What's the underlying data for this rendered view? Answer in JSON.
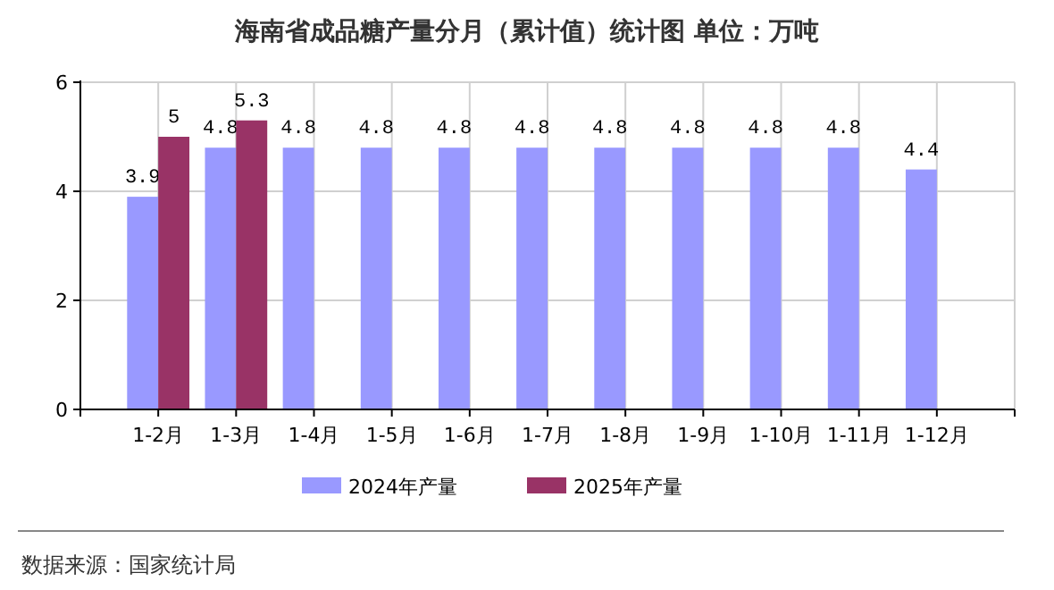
{
  "chart_data": {
    "type": "bar",
    "title": "海南省成品糖产量分月（累计值）统计图 单位：万吨",
    "categories": [
      "1-2月",
      "1-3月",
      "1-4月",
      "1-5月",
      "1-6月",
      "1-7月",
      "1-8月",
      "1-9月",
      "1-10月",
      "1-11月",
      "1-12月"
    ],
    "series": [
      {
        "name": "2024年产量",
        "color": "#9999ff",
        "values": [
          3.9,
          4.8,
          4.8,
          4.8,
          4.8,
          4.8,
          4.8,
          4.8,
          4.8,
          4.8,
          4.4
        ]
      },
      {
        "name": "2025年产量",
        "color": "#993366",
        "values": [
          5,
          5.3,
          null,
          null,
          null,
          null,
          null,
          null,
          null,
          null,
          null
        ]
      }
    ],
    "ylim": [
      0,
      6
    ],
    "yticks": [
      0,
      2,
      4,
      6
    ],
    "grid": true,
    "legend": "bottom",
    "data_labels": true,
    "annotations": [
      "数据来源：国家统计局"
    ]
  }
}
